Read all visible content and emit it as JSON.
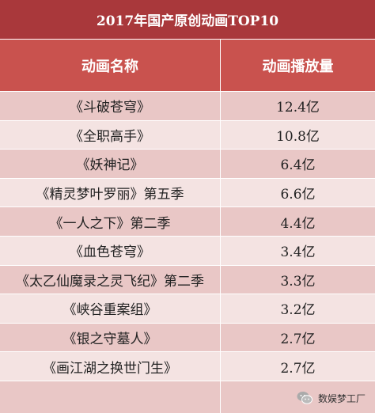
{
  "table": {
    "title": "2017年国产原创动画TOP10",
    "headers": {
      "name": "动画名称",
      "views": "动画播放量"
    },
    "rows": [
      {
        "name": "《斗破苍穹》",
        "views": "12.4亿"
      },
      {
        "name": "《全职高手》",
        "views": "10.8亿"
      },
      {
        "name": "《妖神记》",
        "views": "6.4亿"
      },
      {
        "name": "《精灵梦叶罗丽》第五季",
        "views": "6.6亿"
      },
      {
        "name": "《一人之下》第二季",
        "views": "4.4亿"
      },
      {
        "name": "《血色苍穹》",
        "views": "3.4亿"
      },
      {
        "name": "《太乙仙魔录之灵飞纪》第二季",
        "views": "3.3亿"
      },
      {
        "name": "《峡谷重案组》",
        "views": "3.2亿"
      },
      {
        "name": "《银之守墓人》",
        "views": "2.7亿"
      },
      {
        "name": "《画江湖之换世门生》",
        "views": "2.7亿"
      }
    ]
  },
  "watermark": {
    "text": "数娱梦工厂",
    "icon": "wechat-icon",
    "icon_color": "#aaaaaa"
  },
  "colors": {
    "title_bg": "#a9383b",
    "header_bg": "#c9524e",
    "row_odd": "#e9c7c6",
    "row_even": "#f4e3e2"
  }
}
